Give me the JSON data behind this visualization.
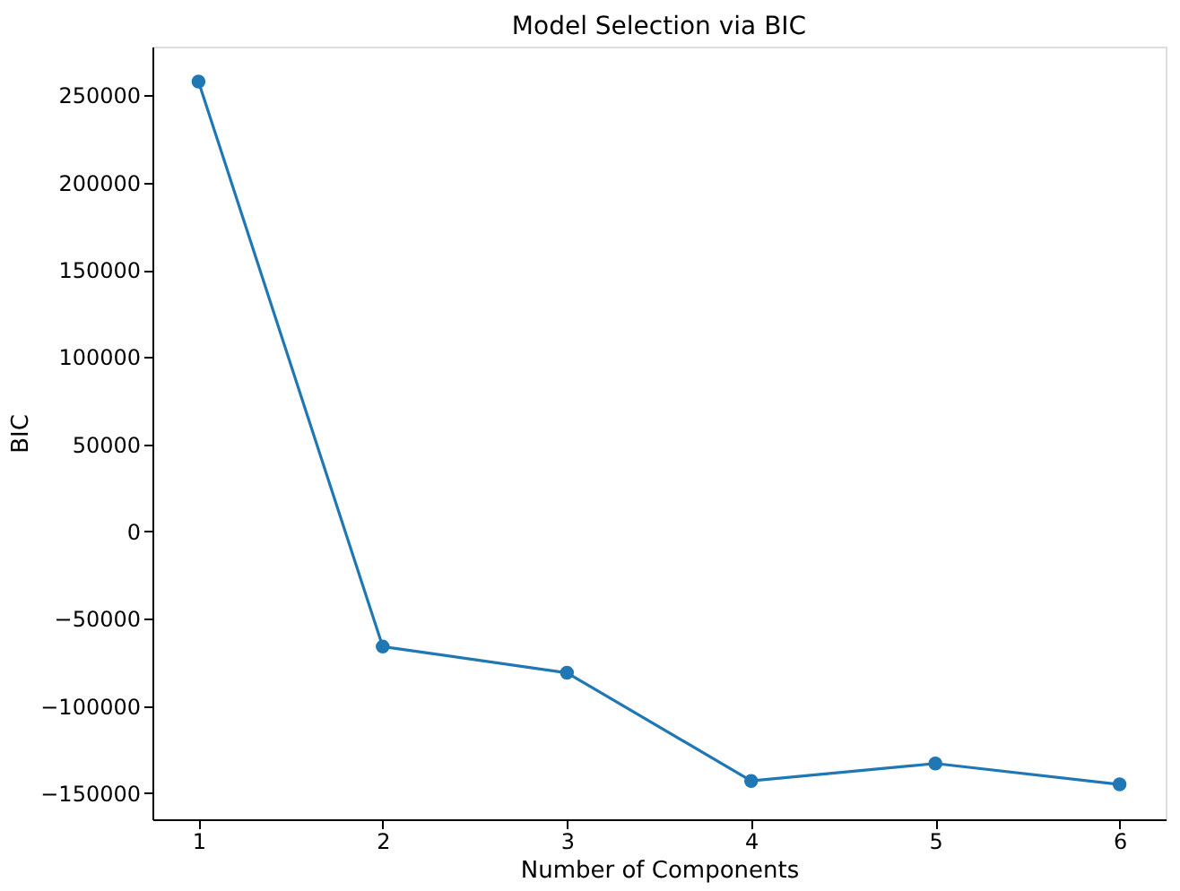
{
  "chart_data": {
    "type": "line",
    "title": "Model Selection via BIC",
    "xlabel": "Number of Components",
    "ylabel": "BIC",
    "x": [
      1,
      2,
      3,
      4,
      5,
      6
    ],
    "series": [
      {
        "color": "#1f77b4",
        "values": [
          258000,
          -66000,
          -81000,
          -143000,
          -133000,
          -145000
        ]
      }
    ],
    "xlim": [
      0.75,
      6.25
    ],
    "xticks": [
      1,
      2,
      3,
      4,
      5,
      6
    ],
    "ylim": [
      -165000,
      278000
    ],
    "yticks": [
      -150000,
      -100000,
      -50000,
      0,
      50000,
      100000,
      150000,
      200000,
      250000
    ],
    "marker": "circle",
    "line_style": "solid",
    "grid": false
  }
}
